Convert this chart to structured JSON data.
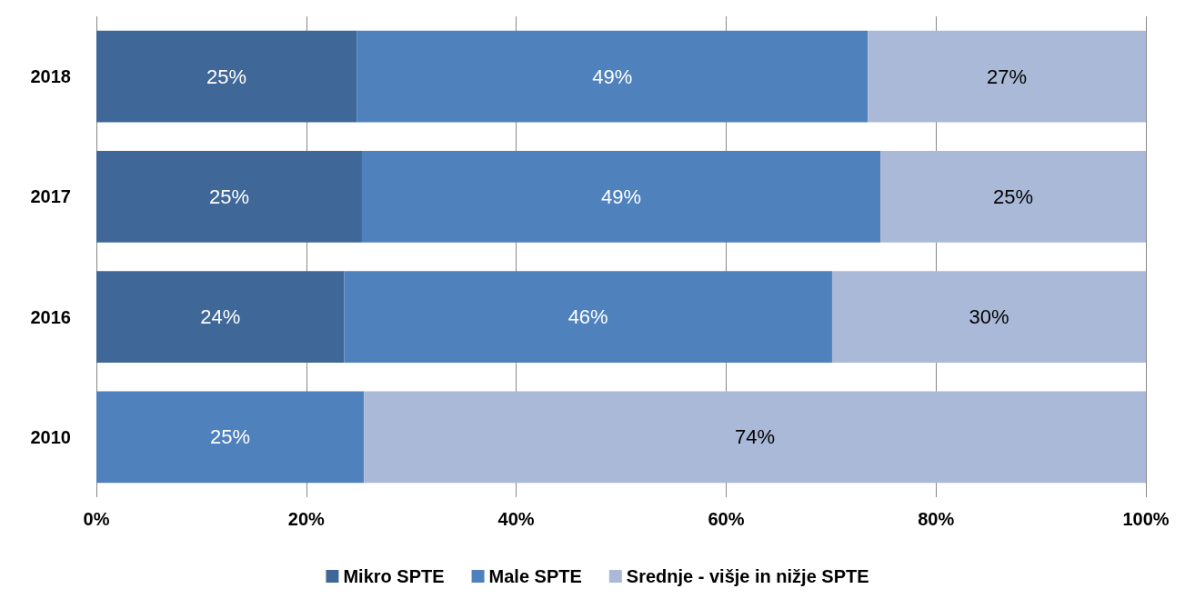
{
  "chart_data": {
    "type": "bar",
    "orientation": "horizontal",
    "stacked": true,
    "categories": [
      "2018",
      "2017",
      "2016",
      "2010"
    ],
    "series": [
      {
        "name": "Mikro SPTE",
        "color": "#3f6797",
        "values": [
          24.8,
          25.3,
          23.6,
          null
        ],
        "value_labels": [
          "25%",
          "25%",
          "24%",
          null
        ]
      },
      {
        "name": "Male SPTE",
        "color": "#4f81bd",
        "values": [
          48.7,
          49.4,
          46.5,
          25.5
        ],
        "value_labels": [
          "49%",
          "49%",
          "46%",
          "25%"
        ]
      },
      {
        "name": "Srednje - višje in nižje SPTE",
        "color": "#aab9d7",
        "values": [
          26.5,
          25.3,
          29.9,
          74.5
        ],
        "value_labels": [
          "27%",
          "25%",
          "30%",
          "74%"
        ]
      }
    ],
    "xlim": [
      0,
      100
    ],
    "xticks": [
      {
        "value": 0,
        "label": "0%"
      },
      {
        "value": 20,
        "label": "20%"
      },
      {
        "value": 40,
        "label": "40%"
      },
      {
        "value": 60,
        "label": "60%"
      },
      {
        "value": 80,
        "label": "80%"
      },
      {
        "value": 100,
        "label": "100%"
      }
    ],
    "grid": "x",
    "legend": "bottom"
  }
}
